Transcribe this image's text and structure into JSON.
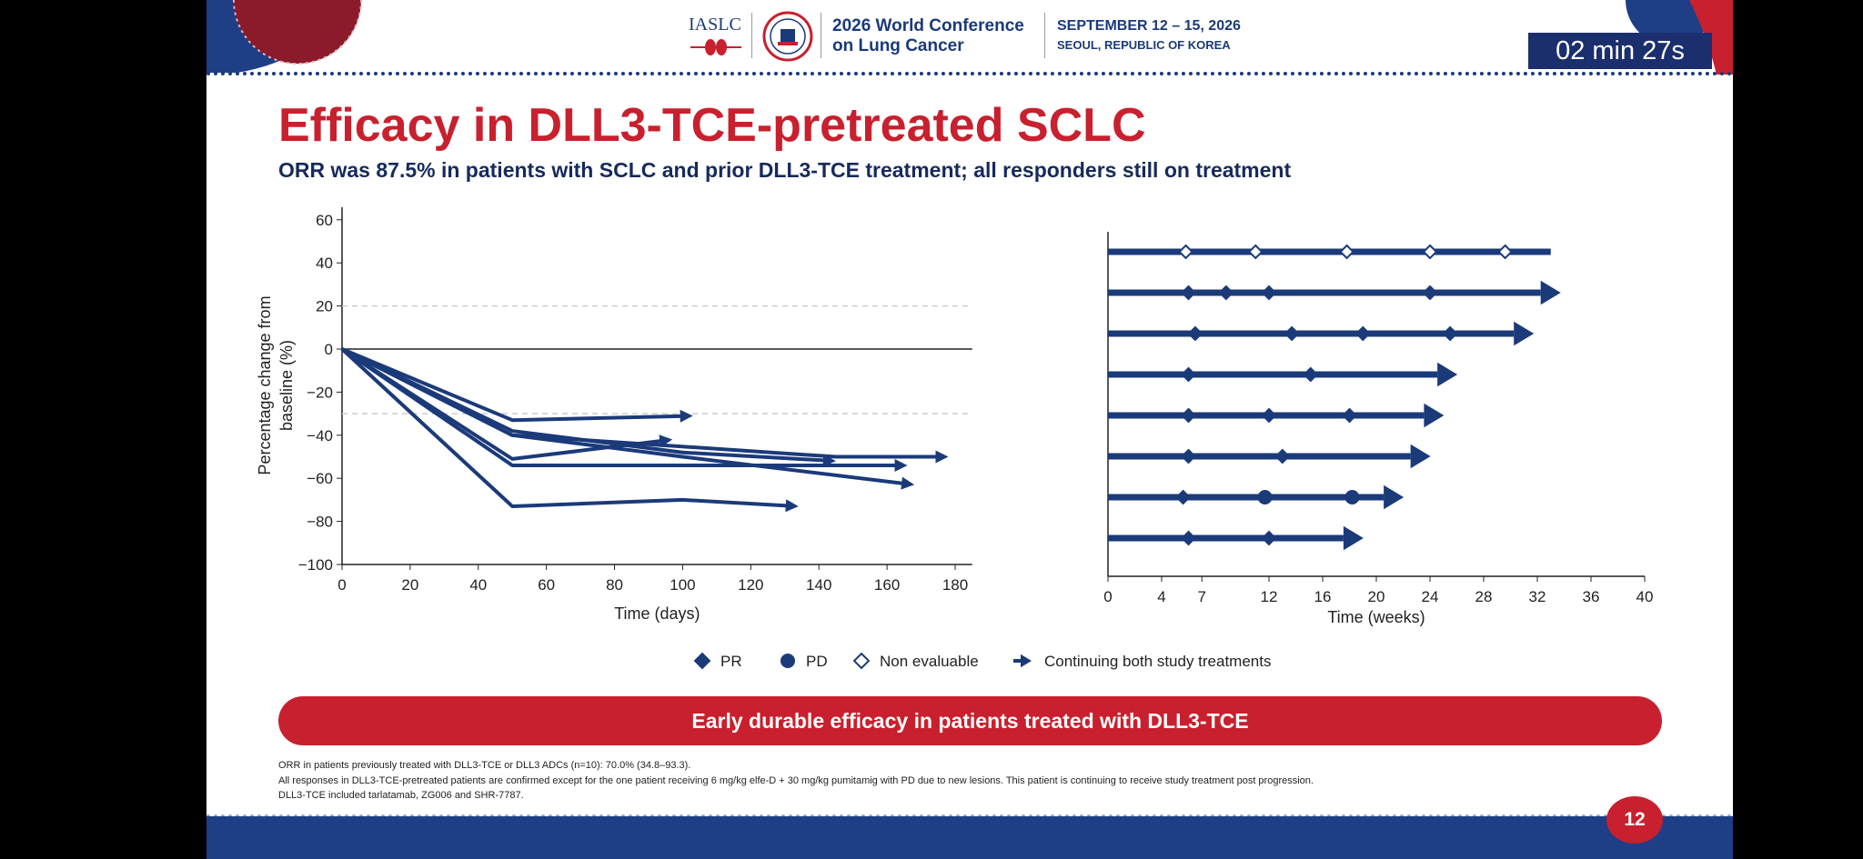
{
  "header": {
    "org_logo_text": "IASLC",
    "conference_line1": "2026 World Conference",
    "conference_line2": "on Lung Cancer",
    "dates": "SEPTEMBER 12 – 15, 2026",
    "location": "SEOUL, REPUBLIC OF KOREA",
    "timer": "02 min 27s"
  },
  "slide": {
    "title": "Efficacy in DLL3-TCE-pretreated SCLC",
    "subtitle": "ORR was 87.5% in patients with SCLC and prior DLL3-TCE treatment; all responders still on treatment",
    "banner": "Early durable efficacy in patients treated with DLL3-TCE",
    "footnotes": [
      "ORR in patients previously treated with DLL3-TCE or DLL3 ADCs (n=10): 70.0% (34.8–93.3).",
      "All responses in DLL3-TCE-pretreated patients are confirmed except for the one patient receiving 6 mg/kg elfe-D + 30 mg/kg pumitamig with PD due to new lesions. This patient is continuing to receive study treatment post progression.",
      "DLL3-TCE included tarlatamab, ZG006 and SHR-7787."
    ],
    "page_number": "12"
  },
  "colors": {
    "navy": "#1b3a7a",
    "red": "#c8202e"
  },
  "legend": [
    {
      "label": "PR",
      "marker": "diamond"
    },
    {
      "label": "PD",
      "marker": "circle"
    },
    {
      "label": "Non evaluable",
      "marker": "open-diamond"
    },
    {
      "label": "Continuing both study treatments",
      "marker": "arrow"
    }
  ],
  "chart_data": [
    {
      "type": "line",
      "xlabel": "Time (days)",
      "ylabel": "Percentage change from baseline (%)",
      "xlim": [
        0,
        185
      ],
      "ylim": [
        -100,
        65
      ],
      "xticks": [
        0,
        20,
        40,
        60,
        80,
        100,
        120,
        140,
        160,
        180
      ],
      "yticks": [
        60,
        40,
        20,
        0,
        -20,
        -40,
        -60,
        -80,
        -100
      ],
      "reference_lines": [
        20,
        -30
      ],
      "zero_line_end": 185,
      "series": [
        {
          "points": [
            [
              0,
              0
            ],
            [
              50,
              -33
            ],
            [
              103,
              -31
            ]
          ],
          "continuing": true
        },
        {
          "points": [
            [
              0,
              0
            ],
            [
              50,
              -38
            ],
            [
              100,
              -48
            ],
            [
              145,
              -52
            ]
          ],
          "continuing": true
        },
        {
          "points": [
            [
              0,
              0
            ],
            [
              50,
              -40
            ],
            [
              145,
              -50
            ],
            [
              178,
              -50
            ]
          ],
          "continuing": true
        },
        {
          "points": [
            [
              0,
              0
            ],
            [
              50,
              -51
            ],
            [
              97,
              -42
            ]
          ],
          "continuing": true
        },
        {
          "points": [
            [
              0,
              0
            ],
            [
              50,
              -54
            ],
            [
              166,
              -54
            ]
          ],
          "continuing": true
        },
        {
          "points": [
            [
              0,
              0
            ],
            [
              50,
              -40
            ],
            [
              100,
              -50
            ],
            [
              168,
              -63
            ]
          ],
          "continuing": true
        },
        {
          "points": [
            [
              0,
              0
            ],
            [
              50,
              -73
            ],
            [
              100,
              -70
            ],
            [
              134,
              -73
            ]
          ],
          "continuing": true
        }
      ]
    },
    {
      "type": "swimmer",
      "xlabel": "Time (weeks)",
      "xlim": [
        0,
        40
      ],
      "xticks": [
        0,
        4,
        7,
        12,
        16,
        20,
        24,
        28,
        32,
        36,
        40
      ],
      "patients": [
        {
          "duration": 33,
          "arrow": false,
          "events": [
            {
              "t": 5.8,
              "type": "NE"
            },
            {
              "t": 11,
              "type": "NE"
            },
            {
              "t": 17.8,
              "type": "NE"
            },
            {
              "t": 24,
              "type": "NE"
            },
            {
              "t": 29.6,
              "type": "NE"
            }
          ]
        },
        {
          "duration": 33.2,
          "arrow": true,
          "events": [
            {
              "t": 6,
              "type": "PR"
            },
            {
              "t": 8.8,
              "type": "PR"
            },
            {
              "t": 12,
              "type": "PR"
            },
            {
              "t": 24,
              "type": "PR"
            }
          ]
        },
        {
          "duration": 31.2,
          "arrow": true,
          "events": [
            {
              "t": 6.5,
              "type": "PR"
            },
            {
              "t": 13.7,
              "type": "PR"
            },
            {
              "t": 19,
              "type": "PR"
            },
            {
              "t": 25.5,
              "type": "PR"
            }
          ]
        },
        {
          "duration": 25.5,
          "arrow": true,
          "events": [
            {
              "t": 6,
              "type": "PR"
            },
            {
              "t": 15.1,
              "type": "PR"
            }
          ]
        },
        {
          "duration": 24.5,
          "arrow": true,
          "events": [
            {
              "t": 6,
              "type": "PR"
            },
            {
              "t": 12,
              "type": "PR"
            },
            {
              "t": 18,
              "type": "PR"
            }
          ]
        },
        {
          "duration": 23.5,
          "arrow": true,
          "events": [
            {
              "t": 6,
              "type": "PR"
            },
            {
              "t": 13,
              "type": "PR"
            }
          ]
        },
        {
          "duration": 21.5,
          "arrow": true,
          "events": [
            {
              "t": 5.6,
              "type": "PR"
            },
            {
              "t": 11.7,
              "type": "PD"
            },
            {
              "t": 18.2,
              "type": "PD"
            }
          ]
        },
        {
          "duration": 18.5,
          "arrow": true,
          "events": [
            {
              "t": 6,
              "type": "PR"
            },
            {
              "t": 12,
              "type": "PR"
            }
          ]
        }
      ]
    }
  ]
}
